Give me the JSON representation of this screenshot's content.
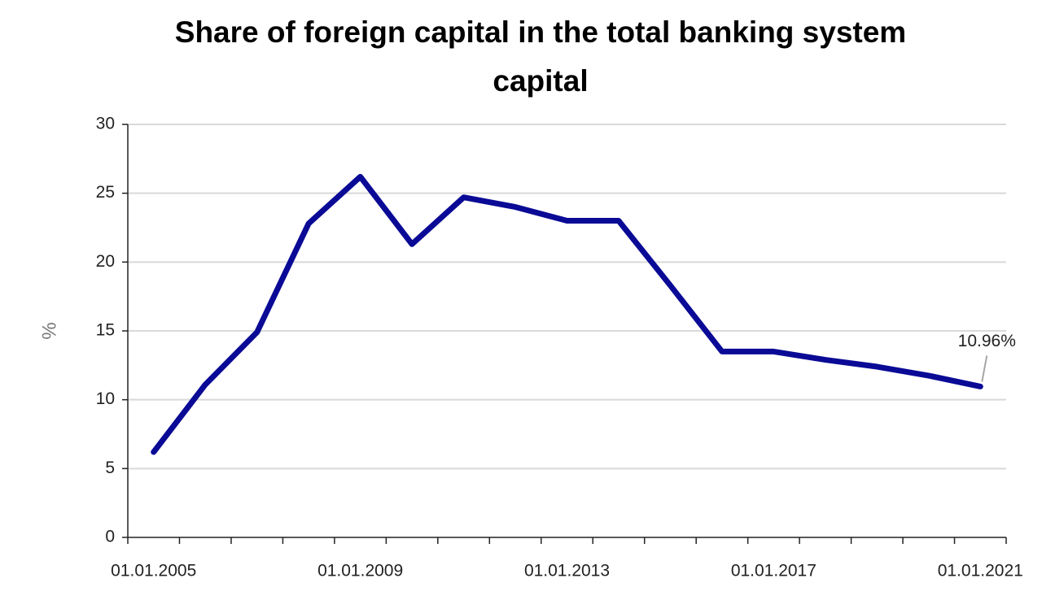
{
  "chart_data": {
    "type": "line",
    "title": "Share of foreign capital in the total banking system capital",
    "y_label": "%",
    "categories": [
      "01.01.2005",
      null,
      null,
      null,
      "01.01.2009",
      null,
      null,
      null,
      "01.01.2013",
      null,
      null,
      null,
      "01.01.2017",
      null,
      null,
      null,
      "01.01.2021"
    ],
    "series": [
      {
        "name": "Share of foreign capital",
        "color": "#0a0a96",
        "values": [
          6.2,
          11.1,
          14.9,
          22.8,
          26.2,
          21.3,
          24.7,
          24.0,
          23.0,
          23.0,
          18.3,
          13.5,
          13.5,
          12.9,
          12.4,
          11.75,
          10.96
        ],
        "value_labels": [
          null,
          null,
          null,
          null,
          null,
          null,
          null,
          null,
          null,
          null,
          null,
          null,
          null,
          null,
          null,
          null,
          "10.96%"
        ]
      }
    ],
    "ylim": [
      0,
      30
    ],
    "yticks": [
      0,
      5,
      10,
      15,
      20,
      25,
      30
    ],
    "grid": true
  }
}
